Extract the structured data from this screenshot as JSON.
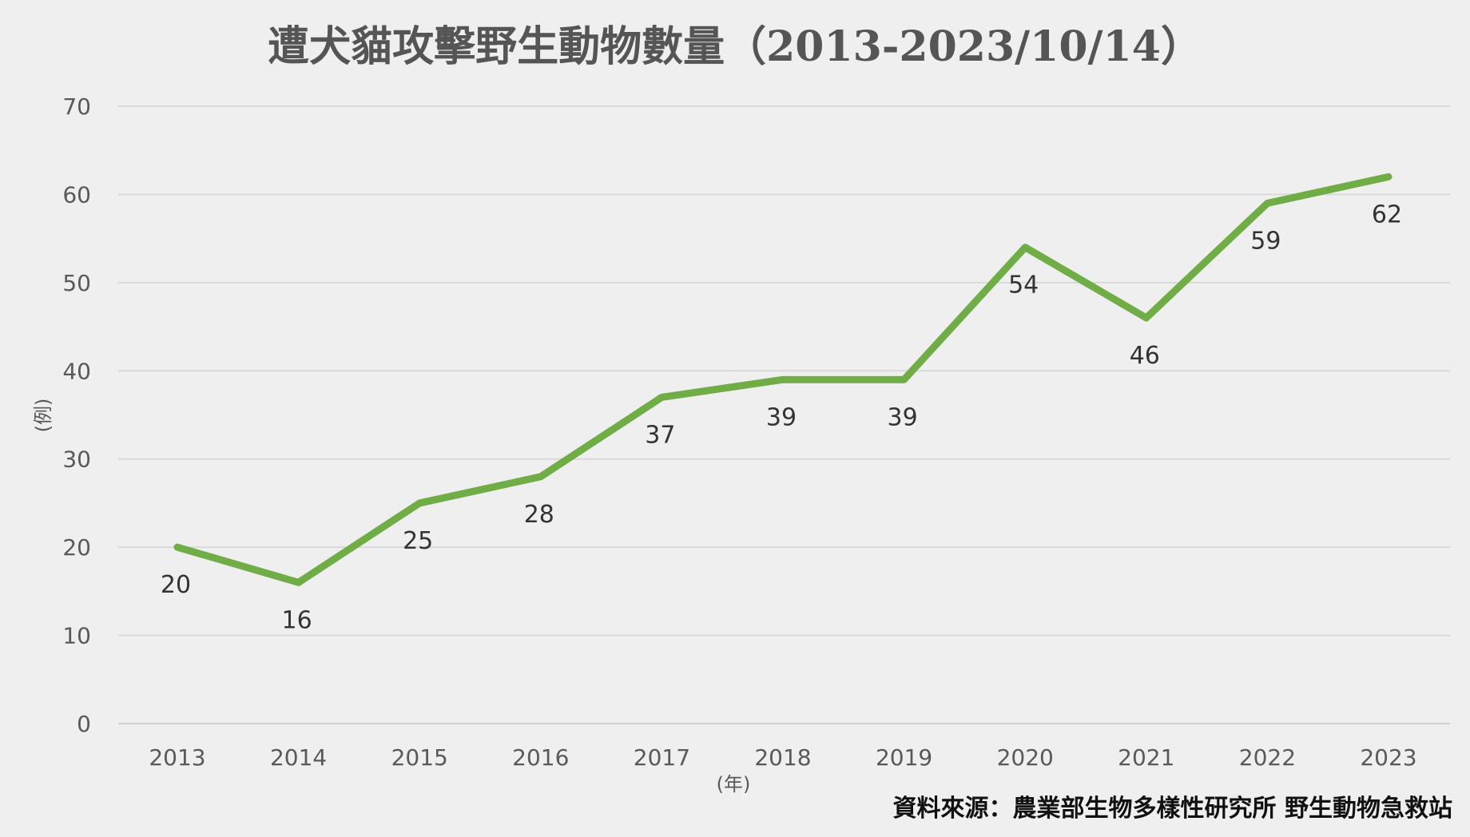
{
  "chart_data": {
    "type": "line",
    "title": "遭犬貓攻擊野生動物數量（2013-2023/10/14）",
    "xlabel": "(年)",
    "ylabel": "(例)",
    "categories": [
      "2013",
      "2014",
      "2015",
      "2016",
      "2017",
      "2018",
      "2019",
      "2020",
      "2021",
      "2022",
      "2023"
    ],
    "series": [
      {
        "values": [
          20,
          16,
          25,
          28,
          37,
          39,
          39,
          54,
          46,
          59,
          62
        ],
        "color": "#70ad47"
      }
    ],
    "ylim": [
      0,
      70
    ],
    "yticks": [
      "0",
      "10",
      "20",
      "30",
      "40",
      "50",
      "60",
      "70"
    ],
    "grid": true,
    "legend": "none",
    "source": "資料來源：農業部生物多樣性研究所 野生動物急救站"
  }
}
